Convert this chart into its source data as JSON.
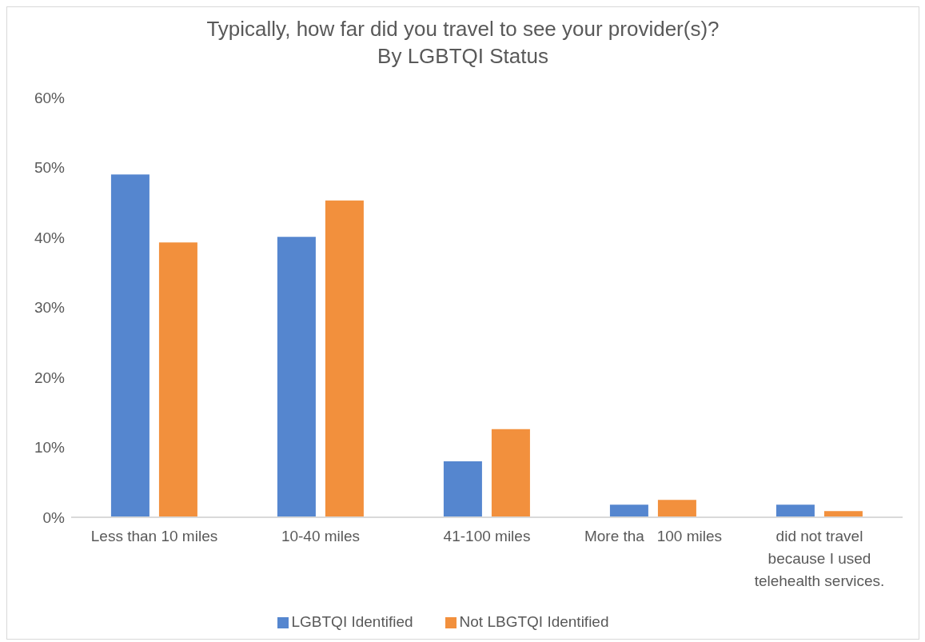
{
  "chart_data": {
    "type": "bar",
    "title": "Typically, how far did you travel to see your provider(s)?\nBy LGBTQI Status",
    "categories": [
      "Less than 10 miles",
      "10-40 miles",
      "41-100 miles",
      "More tha   100 miles",
      "did not travel because I used telehealth services."
    ],
    "series": [
      {
        "name": "LGBTQI Identified",
        "color": "#5586cf",
        "values": [
          49.0,
          40.1,
          8.0,
          1.8,
          1.8
        ]
      },
      {
        "name": "Not LBGTQI Identified",
        "color": "#f2903d",
        "values": [
          39.3,
          45.3,
          12.6,
          2.5,
          0.9
        ]
      }
    ],
    "ylim": [
      0,
      60
    ],
    "yticks": [
      {
        "value": 0,
        "label": "0%"
      },
      {
        "value": 10,
        "label": "10%"
      },
      {
        "value": 20,
        "label": "20%"
      },
      {
        "value": 30,
        "label": "30%"
      },
      {
        "value": 40,
        "label": "40%"
      },
      {
        "value": 50,
        "label": "50%"
      },
      {
        "value": 60,
        "label": "60%"
      }
    ],
    "legend": "bottom"
  }
}
